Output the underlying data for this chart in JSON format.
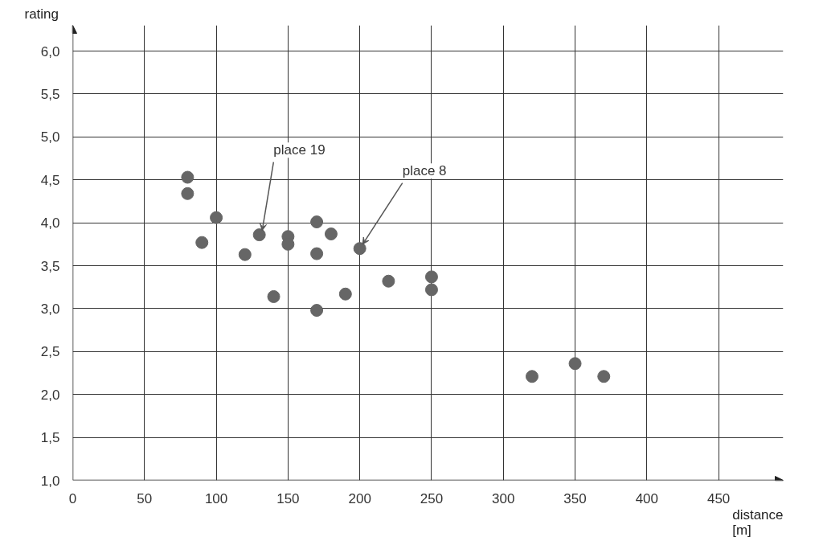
{
  "chart_data": {
    "type": "scatter",
    "xlabel": "distance\n[m]",
    "ylabel": "rating",
    "x": [
      80,
      80,
      100,
      90,
      120,
      130,
      140,
      150,
      150,
      170,
      180,
      170,
      170,
      190,
      200,
      220,
      250,
      250,
      320,
      350,
      370
    ],
    "series": [
      {
        "color": "#666666",
        "values": [
          4.53,
          4.34,
          4.06,
          3.77,
          3.63,
          3.86,
          3.14,
          3.84,
          3.75,
          4.01,
          3.87,
          3.64,
          2.98,
          3.17,
          3.7,
          3.32,
          3.37,
          3.22,
          2.21,
          2.36,
          2.21
        ]
      }
    ],
    "xlim": [
      0,
      495
    ],
    "ylim": [
      1,
      6.3
    ],
    "xticks": [
      0,
      50,
      100,
      150,
      200,
      250,
      300,
      350,
      400,
      450
    ],
    "yticks": [
      {
        "value": 1,
        "label": "1,0"
      },
      {
        "value": 1.5,
        "label": "1,5"
      },
      {
        "value": 2,
        "label": "2,0"
      },
      {
        "value": 2.5,
        "label": "2,5"
      },
      {
        "value": 3,
        "label": "3,0"
      },
      {
        "value": 3.5,
        "label": "3,5"
      },
      {
        "value": 4,
        "label": "4,0"
      },
      {
        "value": 4.5,
        "label": "4,5"
      },
      {
        "value": 5,
        "label": "5,0"
      },
      {
        "value": 5.5,
        "label": "5,5"
      },
      {
        "value": 6,
        "label": "6,0"
      }
    ],
    "grid": true,
    "marker": "circle",
    "annotations": [
      {
        "text": "place 19",
        "x": 130,
        "y": 3.86
      },
      {
        "text": "place 8",
        "x": 200,
        "y": 3.7
      }
    ]
  }
}
